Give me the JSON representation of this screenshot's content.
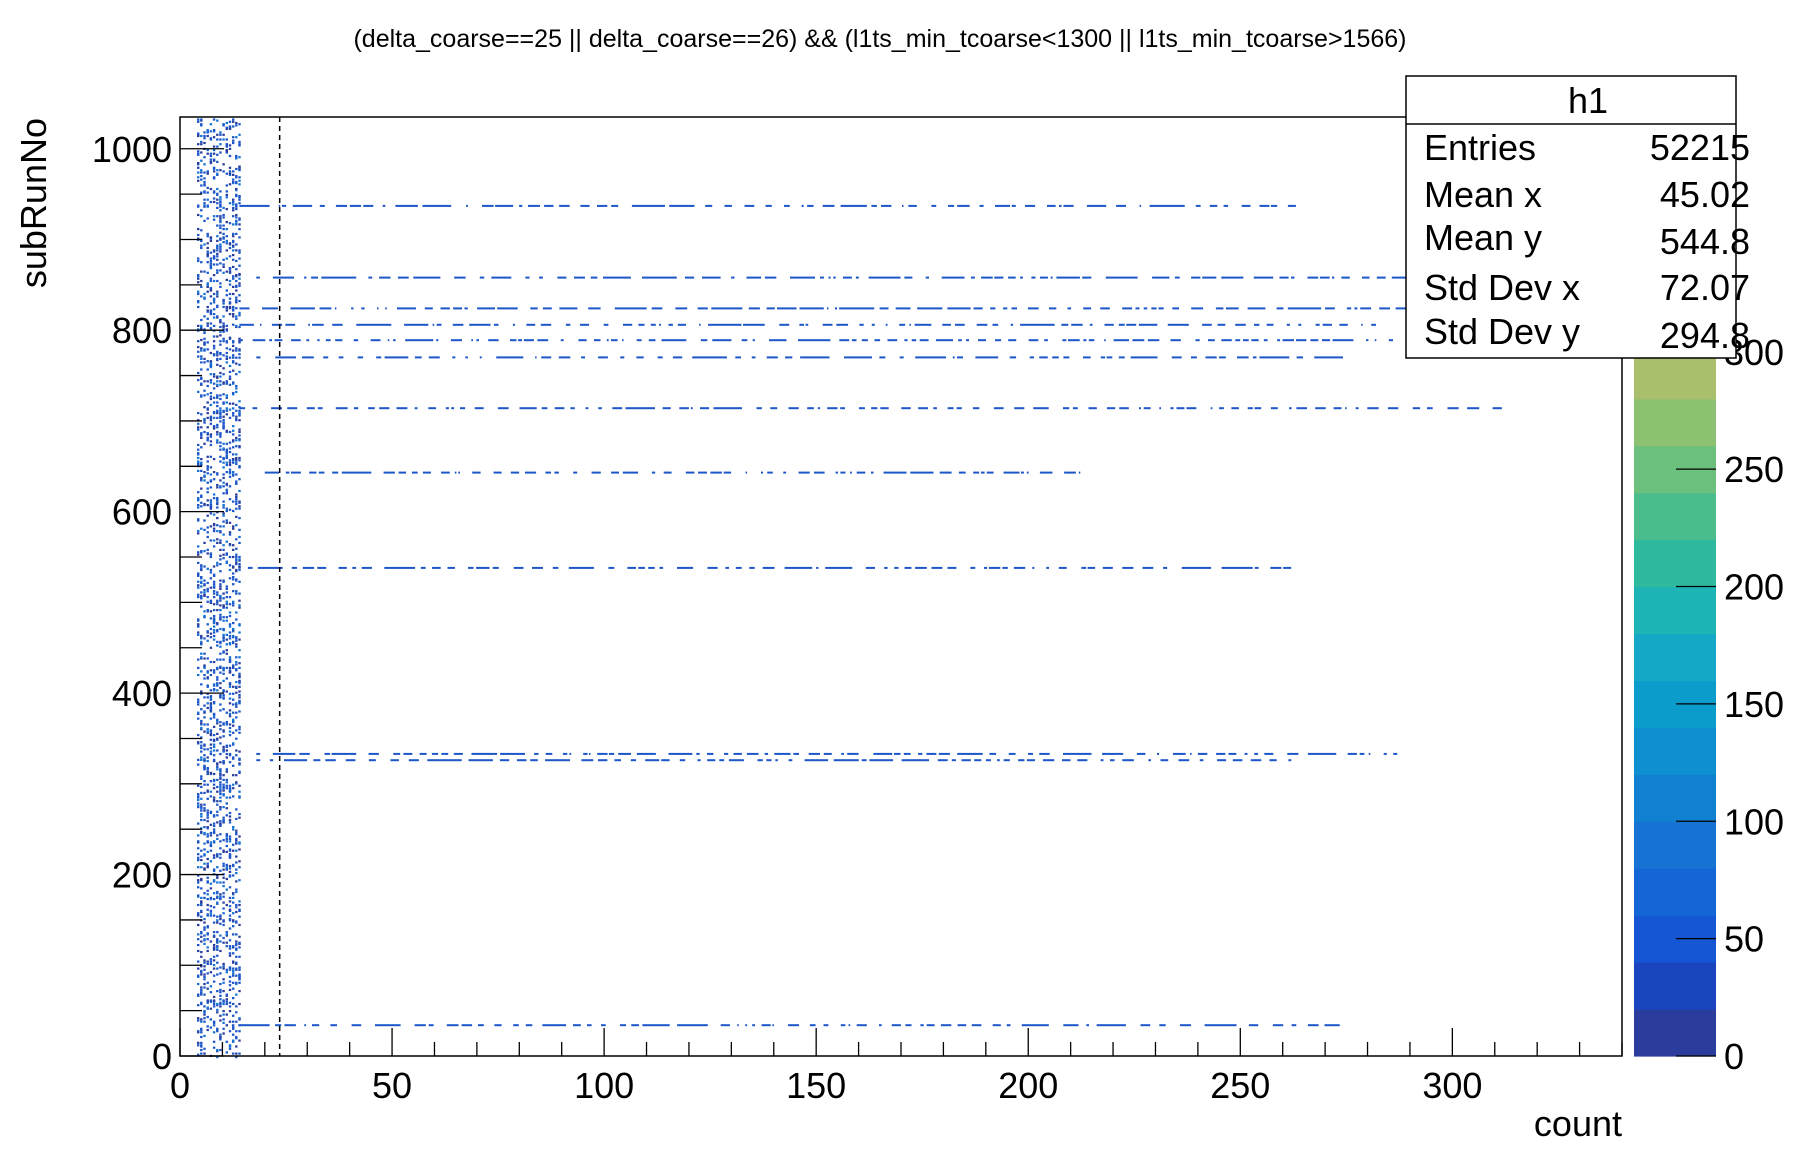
{
  "chart_data": {
    "type": "heatmap",
    "title": "(delta_coarse==25 || delta_coarse==26) && (l1ts_min_tcoarse<1300 || l1ts_min_tcoarse>1566)",
    "xlabel": "count",
    "ylabel": "subRunNo",
    "xlim": [
      0,
      340
    ],
    "ylim": [
      0,
      1035
    ],
    "x_ticks": [
      0,
      50,
      100,
      150,
      200,
      250,
      300
    ],
    "y_ticks": [
      0,
      200,
      400,
      600,
      800,
      1000
    ],
    "colorbar": {
      "zlim": [
        0,
        400
      ],
      "ticks": [
        0,
        50,
        100,
        150,
        200,
        250,
        300
      ],
      "tick_labels": [
        "0",
        "50",
        "100",
        "150",
        "200",
        "250",
        "300"
      ],
      "palette": [
        "#2a3c9c",
        "#1a45bf",
        "#1556d4",
        "#1466d6",
        "#1673d4",
        "#1280d0",
        "#0f8fcf",
        "#0c9ccc",
        "#15a8c6",
        "#1eb3b5",
        "#2fb99f",
        "#4bbd8d",
        "#6cc07e",
        "#8cc172",
        "#aabf6b",
        "#c7bc66",
        "#dcbb5c",
        "#ecbe50",
        "#f6c943",
        "#f8d83a"
      ]
    },
    "dense_column": {
      "x_range": [
        4,
        14
      ],
      "y_range": [
        0,
        1035
      ],
      "fill_fraction": 0.55,
      "color": "#1c56c8"
    },
    "dashed_line_x": 23.5,
    "sparse_rows": [
      {
        "y": 937,
        "x_start": 14,
        "x_end": 265
      },
      {
        "y": 858,
        "x_start": 18,
        "x_end": 290
      },
      {
        "y": 824,
        "x_start": 14,
        "x_end": 290
      },
      {
        "y": 806,
        "x_start": 14,
        "x_end": 282
      },
      {
        "y": 789,
        "x_start": 14,
        "x_end": 286
      },
      {
        "y": 770,
        "x_start": 18,
        "x_end": 275
      },
      {
        "y": 714,
        "x_start": 14,
        "x_end": 313
      },
      {
        "y": 643,
        "x_start": 20,
        "x_end": 212
      },
      {
        "y": 538,
        "x_start": 16,
        "x_end": 262
      },
      {
        "y": 333,
        "x_start": 18,
        "x_end": 287
      },
      {
        "y": 326,
        "x_start": 18,
        "x_end": 262
      },
      {
        "y": 34,
        "x_start": 14,
        "x_end": 275
      }
    ],
    "stats_box": {
      "name": "h1",
      "rows": [
        {
          "label": "Entries",
          "value": "52215"
        },
        {
          "label": "Mean x",
          "value": "45.02"
        },
        {
          "label": "Mean y",
          "value": "544.8"
        },
        {
          "label": "Std Dev x",
          "value": "72.07"
        },
        {
          "label": "Std Dev y",
          "value": "294.8"
        }
      ]
    },
    "grid": false
  }
}
